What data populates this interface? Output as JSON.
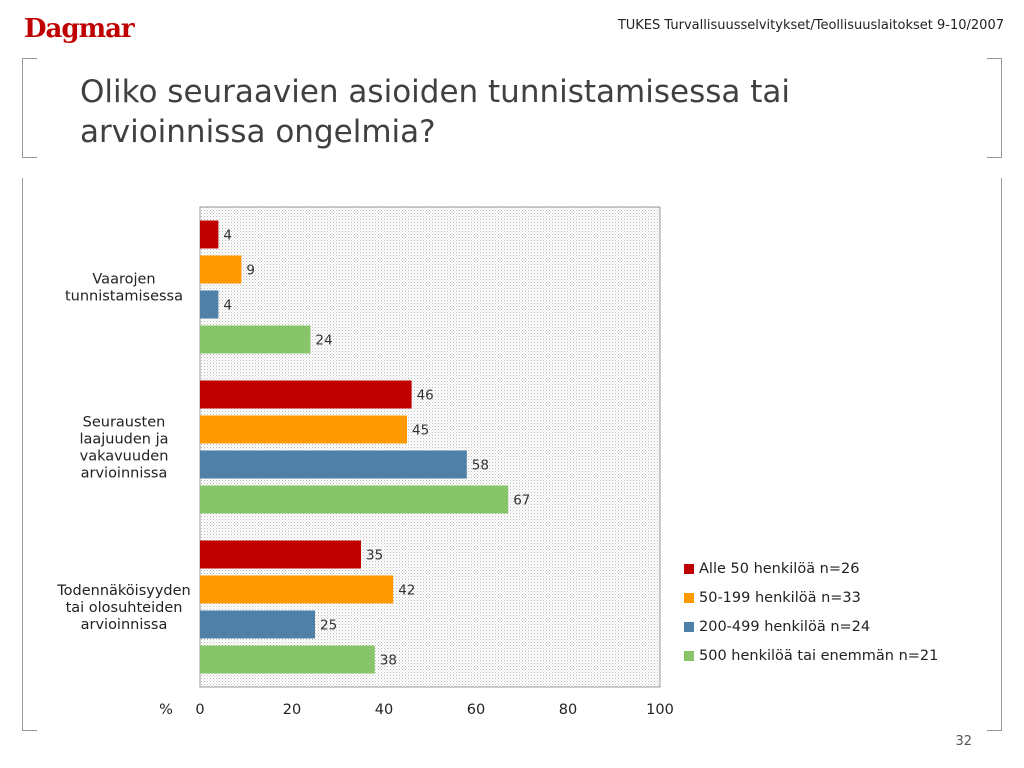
{
  "header": {
    "logo": "Dagmar",
    "source": "TUKES Turvallisuusselvitykset/Teollisuuslaitokset 9-10/2007"
  },
  "title": "Oliko seuraavien asioiden tunnistamisessa tai arvioinnissa ongelmia?",
  "page_number": "32",
  "colors": {
    "series": [
      "#c00000",
      "#ff9900",
      "#4f81a8",
      "#88c468"
    ],
    "plot_bg": "#e8e8e8"
  },
  "chart_data": {
    "type": "bar",
    "orientation": "horizontal",
    "title": "",
    "categories": [
      [
        "Vaarojen",
        "tunnistamisessa"
      ],
      [
        "Seurausten",
        "laajuuden ja",
        "vakavuuden",
        "arvioinnissa"
      ],
      [
        "Todennäköisyyden",
        "tai olosuhteiden",
        "arvioinnissa"
      ]
    ],
    "series": [
      {
        "name": "Alle 50 henkilöä n=26",
        "values": [
          4,
          46,
          35
        ]
      },
      {
        "name": "50-199 henkilöä n=33",
        "values": [
          9,
          45,
          42
        ]
      },
      {
        "name": "200-499 henkilöä n=24",
        "values": [
          4,
          58,
          25
        ]
      },
      {
        "name": "500 henkilöä tai enemmän n=21",
        "values": [
          24,
          67,
          38
        ]
      }
    ],
    "xlabel": "%",
    "xlim": [
      0,
      100
    ],
    "xticks": [
      "0",
      "20",
      "40",
      "60",
      "80",
      "100"
    ],
    "legend_position": "right-bottom",
    "grid": false
  }
}
